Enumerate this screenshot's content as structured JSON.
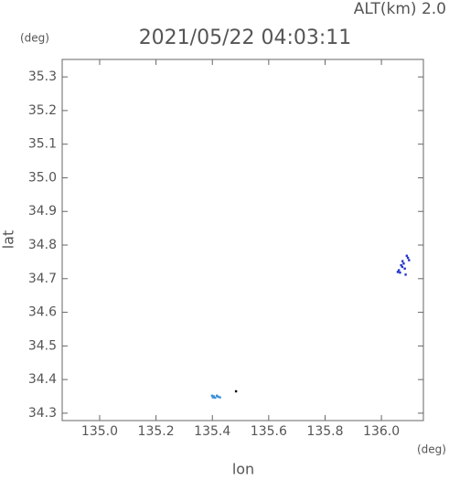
{
  "chart_data": {
    "type": "scatter",
    "title": "2021/05/22 04:03:11",
    "annotation": "ALT(km) 2.0",
    "y_unit": "(deg)",
    "x_unit": "(deg)",
    "xlabel": "lon",
    "ylabel": "lat",
    "xlim": [
      134.867,
      136.149
    ],
    "ylim": [
      34.278,
      35.352
    ],
    "xticks": [
      {
        "value": 135.0,
        "label": "135.0"
      },
      135.2,
      135.4,
      135.6,
      135.8,
      {
        "value": 136.0,
        "label": "136.0"
      }
    ],
    "yticks": [
      34.3,
      34.4,
      34.5,
      34.6,
      34.7,
      34.8,
      34.9,
      {
        "value": 35.0,
        "label": "35.0"
      },
      35.1,
      35.2,
      35.3
    ],
    "series": [
      {
        "color": "#3a8fd8",
        "x": [
          135.399,
          135.402,
          135.405,
          135.41,
          135.416,
          135.42,
          135.427
        ],
        "y": [
          34.352,
          34.347,
          34.35,
          34.346,
          34.352,
          34.349,
          34.347
        ]
      },
      {
        "color": "#000000",
        "x": [
          135.484
        ],
        "y": [
          34.365
        ]
      },
      {
        "color": "#2233cc",
        "x": [
          136.058,
          136.062,
          136.066,
          136.07,
          136.075,
          136.079,
          136.083,
          136.09,
          136.094,
          136.098,
          136.074,
          136.086
        ],
        "y": [
          34.72,
          34.725,
          34.718,
          34.74,
          34.752,
          34.745,
          34.73,
          34.768,
          34.762,
          34.755,
          34.735,
          34.712
        ]
      }
    ]
  }
}
